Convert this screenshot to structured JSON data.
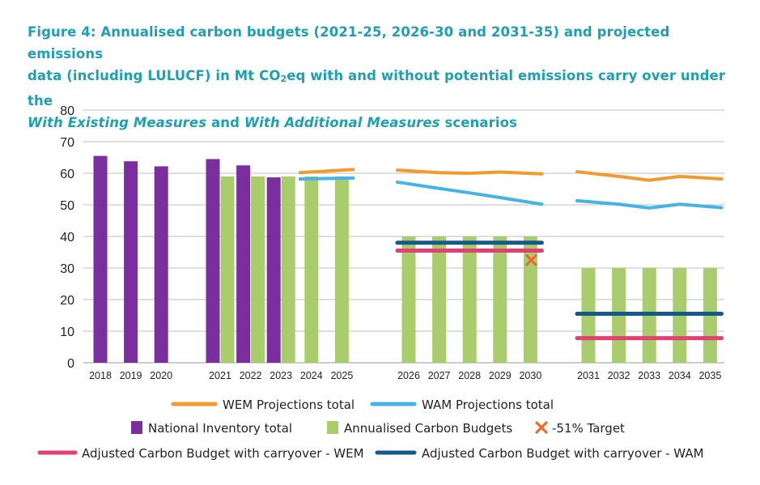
{
  "title": {
    "line1": "Figure 4:  Annualised carbon budgets (2021-25, 2026-30 and 2031-35) and projected emissions",
    "line2_pre": "data (including LULUCF) in Mt CO",
    "line2_sub": "2",
    "line2_post": "eq with and without potential emissions carry over under the",
    "line3_em1": "With Existing Measures",
    "line3_and": " and ",
    "line3_em2": "With Additional Measures",
    "line3_post": " scenarios"
  },
  "colors": {
    "national": "#7b2f9e",
    "budget": "#a9cc6d",
    "wem": "#f29a2e",
    "wam": "#45b3e6",
    "adj_wem": "#e33f72",
    "adj_wam": "#155a86",
    "target": "#ef6a2a",
    "grid": "#bfbfbf"
  },
  "chart_data": {
    "type": "bar",
    "ylim": [
      0,
      80
    ],
    "yticks": [
      "0",
      "10",
      "20",
      "30",
      "40",
      "50",
      "60",
      "70",
      "80"
    ],
    "groups": [
      [
        "2018",
        "2019",
        "2020"
      ],
      [
        "2021",
        "2022",
        "2023",
        "2024",
        "2025"
      ],
      [
        "2026",
        "2027",
        "2028",
        "2029",
        "2030"
      ],
      [
        "2031",
        "2032",
        "2033",
        "2034",
        "2035"
      ]
    ],
    "national_inventory": {
      "2018": 65.5,
      "2019": 63.8,
      "2020": 62.2,
      "2021": 64.5,
      "2022": 62.5,
      "2023": 58.7
    },
    "annualised_budgets": {
      "2021": 59,
      "2022": 59,
      "2023": 59,
      "2024": 59,
      "2025": 59,
      "2026": 40,
      "2027": 40,
      "2028": 40,
      "2029": 40,
      "2030": 40,
      "2031": 30,
      "2032": 30,
      "2033": 30,
      "2034": 30,
      "2035": 30
    },
    "wem_segments": [
      {
        "years": [
          "2024",
          "2025"
        ],
        "values": [
          60.2,
          61.2
        ]
      },
      {
        "years": [
          "2026",
          "2027",
          "2028",
          "2029",
          "2030"
        ],
        "values": [
          61,
          60.2,
          60,
          60.4,
          59.8
        ]
      },
      {
        "years": [
          "2031",
          "2032",
          "2033",
          "2034",
          "2035"
        ],
        "values": [
          60.5,
          59,
          57.8,
          59,
          58.2
        ]
      }
    ],
    "wam_segments": [
      {
        "years": [
          "2024",
          "2025"
        ],
        "values": [
          58.2,
          58.5
        ]
      },
      {
        "years": [
          "2026",
          "2027",
          "2028",
          "2029",
          "2030"
        ],
        "values": [
          57.2,
          55.2,
          53.8,
          52.3,
          50.2
        ]
      },
      {
        "years": [
          "2031",
          "2032",
          "2033",
          "2034",
          "2035"
        ],
        "values": [
          51.3,
          50.2,
          49,
          50.2,
          49.1
        ]
      }
    ],
    "adjusted_wem": [
      {
        "from": "2026",
        "to": "2030",
        "value": 35.5
      },
      {
        "from": "2031",
        "to": "2035",
        "value": 7.8
      }
    ],
    "adjusted_wam": [
      {
        "from": "2026",
        "to": "2030",
        "value": 38
      },
      {
        "from": "2031",
        "to": "2035",
        "value": 15.5
      }
    ],
    "target": {
      "year": "2030",
      "value": 32.5
    }
  },
  "legend": {
    "wem": "WEM Projections total",
    "wam": "WAM Projections total",
    "national": "National Inventory total",
    "budget": "Annualised Carbon Budgets",
    "target": "-51% Target",
    "adj_wem": "Adjusted Carbon Budget with carryover - WEM",
    "adj_wam": "Adjusted Carbon Budget with carryover - WAM"
  }
}
